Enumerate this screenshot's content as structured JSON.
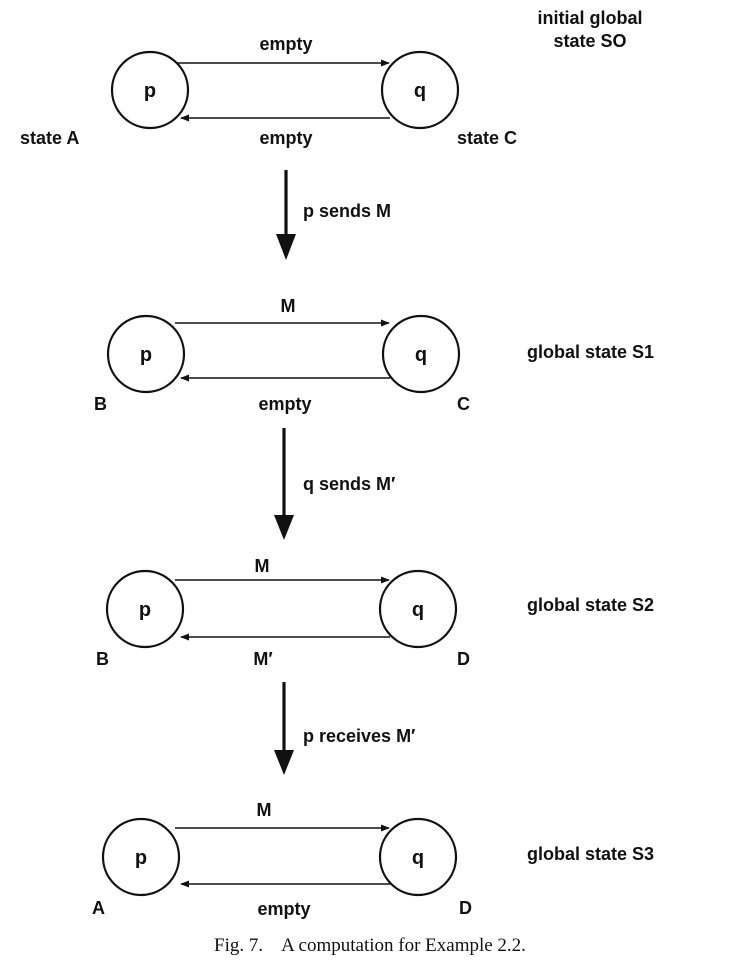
{
  "figure": {
    "caption": "Fig. 7.    A computation for Example 2.2."
  },
  "states": [
    {
      "title_line1": "initial global",
      "title_line2": "state SO",
      "p": "p",
      "q": "q",
      "channel_pq": "empty",
      "channel_qp": "empty",
      "p_state": "state A",
      "q_state": "state C"
    },
    {
      "title_line1": "global state S1",
      "p": "p",
      "q": "q",
      "channel_pq": "M",
      "channel_qp": "empty",
      "p_state": "B",
      "q_state": "C"
    },
    {
      "title_line1": "global state S2",
      "p": "p",
      "q": "q",
      "channel_pq": "M",
      "channel_qp": "M′",
      "p_state": "B",
      "q_state": "D"
    },
    {
      "title_line1": "global state S3",
      "p": "p",
      "q": "q",
      "channel_pq": "M",
      "channel_qp": "empty",
      "p_state": "A",
      "q_state": "D"
    }
  ],
  "transitions": [
    {
      "label": "p sends M"
    },
    {
      "label": "q sends M′"
    },
    {
      "label": "p receives M′"
    }
  ]
}
